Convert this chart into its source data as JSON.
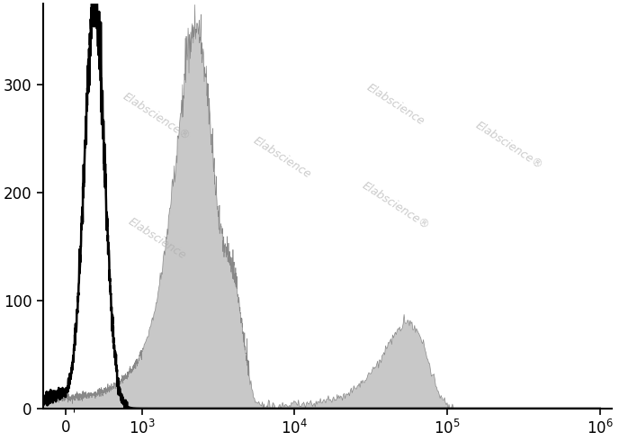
{
  "title": "",
  "xlabel": "",
  "ylabel": "",
  "ylim": [
    0,
    375
  ],
  "yticks": [
    0,
    100,
    200,
    300
  ],
  "yticklabels": [
    "0",
    "100",
    "200",
    "300"
  ],
  "background_color": "#ffffff",
  "watermark_text": "Elabscience",
  "watermark_color": "#aaaaaa",
  "watermark_alpha": 0.6,
  "unstained_color": "black",
  "stained_fill_color": "#c8c8c8",
  "stained_edge_color": "#888888",
  "stained_linewidth": 0.5,
  "unstained_linewidth": 1.8,
  "linthresh": 1000,
  "linscale": 0.45,
  "xlim": [
    -300,
    1200000
  ],
  "xticks": [
    0,
    1000,
    10000,
    100000,
    1000000
  ],
  "xticklabels": [
    "0",
    "$10^3$",
    "$10^4$",
    "$10^5$",
    "$10^6$"
  ],
  "unstained_peak_mu": 380,
  "unstained_peak_sigma": 130,
  "unstained_peak_amp": 370,
  "stained_peak1_mu": 2200,
  "stained_peak1_sigma": 600,
  "stained_peak1_amp": 340,
  "stained_peak2_mu": 3800,
  "stained_peak2_sigma": 700,
  "stained_peak2_amp": 120,
  "stained_peak3_mu": 55000,
  "stained_peak3_sigma": 18000,
  "stained_peak3_amp": 80,
  "stained_baseline_amp": 10
}
